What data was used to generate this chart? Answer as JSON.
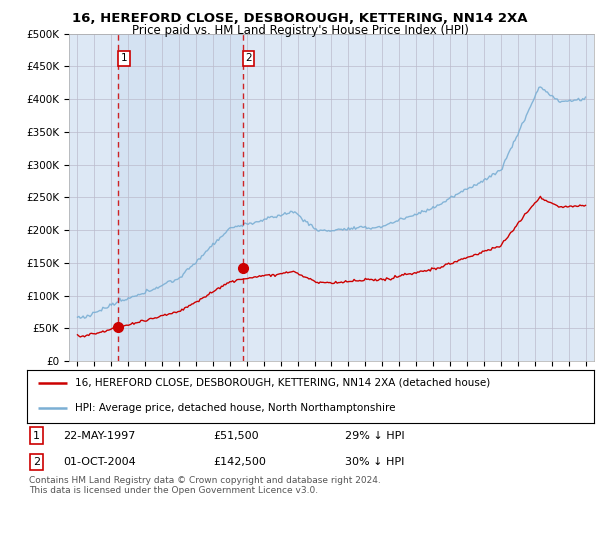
{
  "title1": "16, HEREFORD CLOSE, DESBOROUGH, KETTERING, NN14 2XA",
  "title2": "Price paid vs. HM Land Registry's House Price Index (HPI)",
  "ylabel_ticks": [
    "£0",
    "£50K",
    "£100K",
    "£150K",
    "£200K",
    "£250K",
    "£300K",
    "£350K",
    "£400K",
    "£450K",
    "£500K"
  ],
  "ytick_values": [
    0,
    50000,
    100000,
    150000,
    200000,
    250000,
    300000,
    350000,
    400000,
    450000,
    500000
  ],
  "xlim_start": 1994.5,
  "xlim_end": 2025.5,
  "ylim_min": 0,
  "ylim_max": 500000,
  "sale1_year": 1997.39,
  "sale1_price": 51500,
  "sale2_year": 2004.75,
  "sale2_price": 142500,
  "legend_line1": "16, HEREFORD CLOSE, DESBOROUGH, KETTERING, NN14 2XA (detached house)",
  "legend_line2": "HPI: Average price, detached house, North Northamptonshire",
  "table_row1": [
    "1",
    "22-MAY-1997",
    "£51,500",
    "29% ↓ HPI"
  ],
  "table_row2": [
    "2",
    "01-OCT-2004",
    "£142,500",
    "30% ↓ HPI"
  ],
  "footer1": "Contains HM Land Registry data © Crown copyright and database right 2024.",
  "footer2": "This data is licensed under the Open Government Licence v3.0.",
  "hpi_color": "#7bafd4",
  "price_color": "#cc0000",
  "bg_color": "#dde8f5",
  "shade_color": "#ccddf0",
  "plot_bg": "#ffffff"
}
